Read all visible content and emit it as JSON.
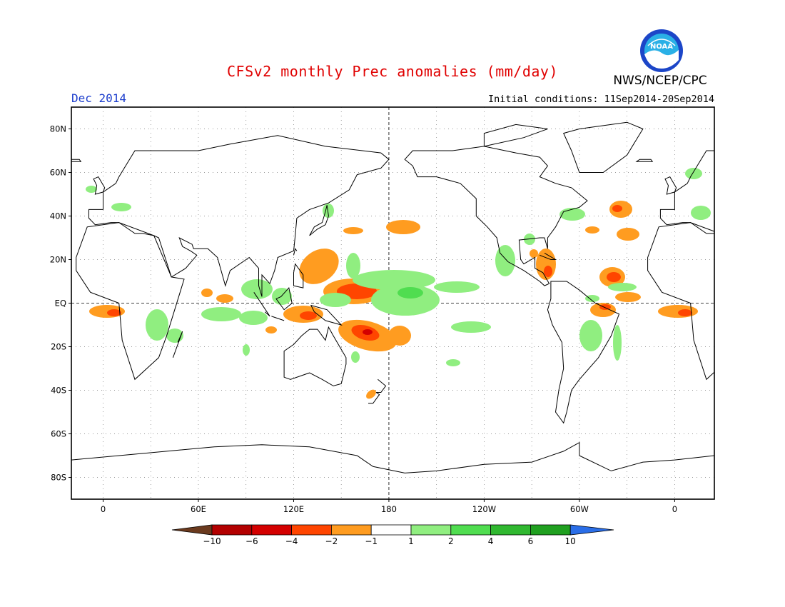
{
  "header": {
    "title": "CFSv2 monthly Prec anomalies (mm/day)",
    "org": "NWS/NCEP/CPC",
    "month": "Dec 2014",
    "initial_conditions": "Initial conditions: 11Sep2014-20Sep2014",
    "logo_text": "NOAA"
  },
  "axes": {
    "lat_labels": [
      "80N",
      "60N",
      "40N",
      "20N",
      "EQ",
      "20S",
      "40S",
      "60S",
      "80S"
    ],
    "lat_values": [
      80,
      60,
      40,
      20,
      0,
      -20,
      -40,
      -60,
      -80
    ],
    "lon_labels": [
      "0",
      "60E",
      "120E",
      "180",
      "120W",
      "60W",
      "0"
    ],
    "lon_values": [
      0,
      60,
      120,
      180,
      240,
      300,
      360
    ],
    "lon_range": [
      -20,
      385
    ],
    "lat_range": [
      -90,
      90
    ]
  },
  "legend": {
    "labels": [
      "-10",
      "-6",
      "-4",
      "-2",
      "-1",
      "1",
      "2",
      "4",
      "6",
      "10"
    ],
    "colors": [
      "#6b3a1e",
      "#b30000",
      "#d40000",
      "#ff4500",
      "#ff9c20",
      "#ffffff",
      "#90ee80",
      "#50dd50",
      "#30b830",
      "#20a020",
      "#2a6ee8"
    ]
  },
  "colors": {
    "title": "#e00000",
    "month": "#1a3ccc",
    "neg1": "#ff9c20",
    "neg2": "#ff4500",
    "neg3": "#d40000",
    "pos1": "#90ee80",
    "pos2": "#50dd50",
    "pos3": "#30b830"
  }
}
